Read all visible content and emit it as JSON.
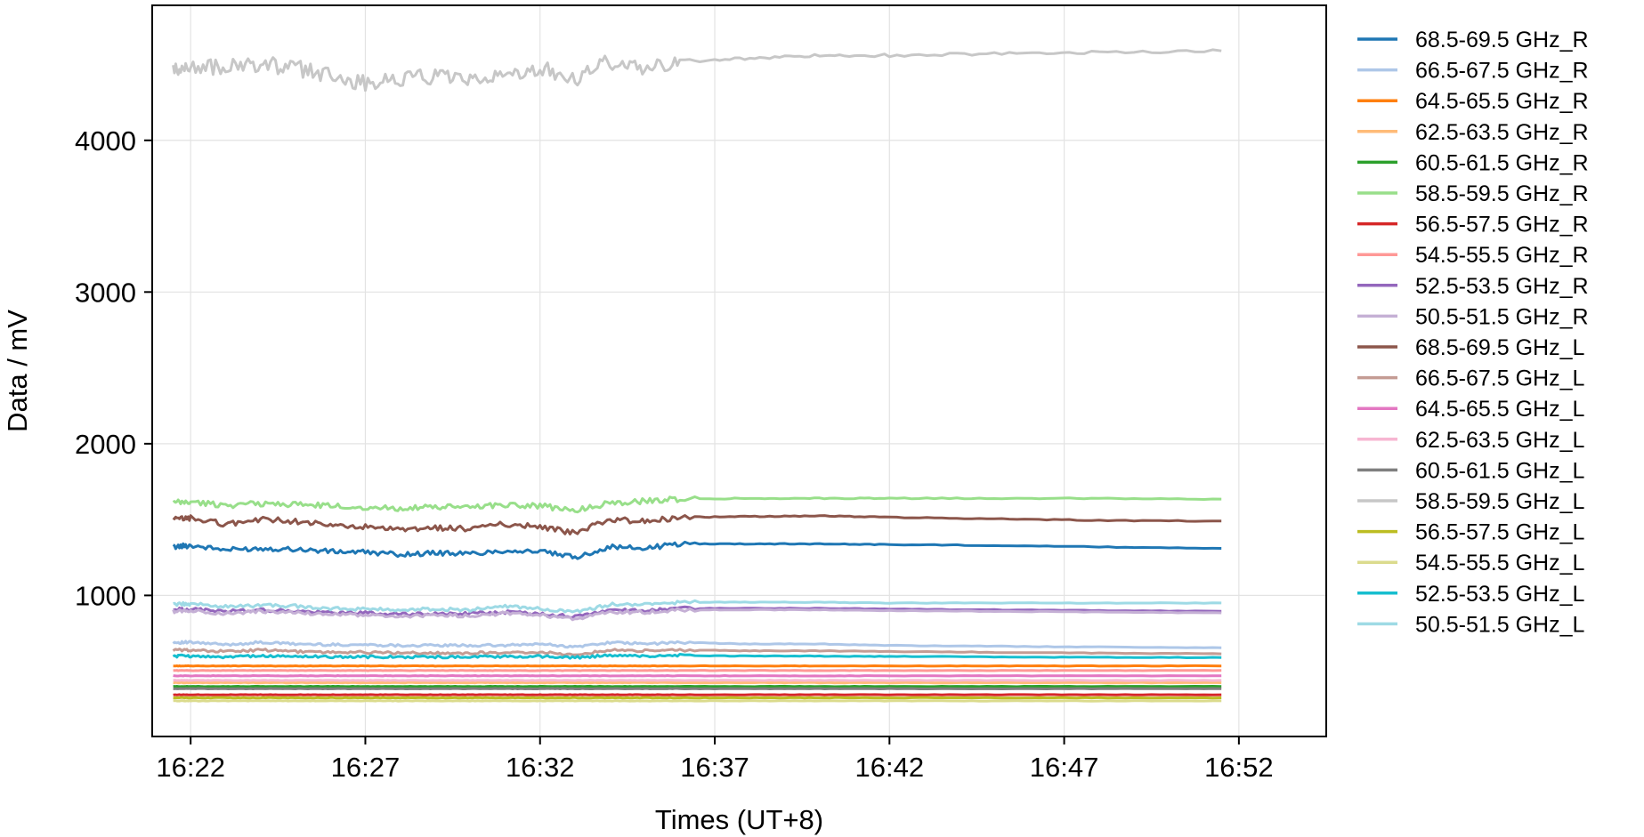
{
  "chart_data": {
    "type": "line",
    "title": "",
    "xlabel": "Times (UT+8)",
    "ylabel": "Data / mV",
    "grid": true,
    "legend_position": "right-outside",
    "x_range_minutes": [
      -1.1,
      32.5
    ],
    "x_ticks": [
      {
        "label": "16:22",
        "value": 0
      },
      {
        "label": "16:27",
        "value": 5
      },
      {
        "label": "16:32",
        "value": 10
      },
      {
        "label": "16:37",
        "value": 15
      },
      {
        "label": "16:42",
        "value": 20
      },
      {
        "label": "16:47",
        "value": 25
      },
      {
        "label": "16:52",
        "value": 30
      }
    ],
    "ylim": [
      70,
      4890
    ],
    "y_ticks": [
      1000,
      2000,
      3000,
      4000
    ],
    "x_times": [
      "16:21.5",
      "16:22",
      "16:23",
      "16:24",
      "16:25",
      "16:26",
      "16:27",
      "16:28",
      "16:29",
      "16:30",
      "16:31",
      "16:32",
      "16:33",
      "16:34",
      "16:35",
      "16:36",
      "16:38",
      "16:40",
      "16:42",
      "16:45",
      "16:48",
      "16:51.5"
    ],
    "x": [
      -0.5,
      0,
      1,
      2,
      3,
      4,
      5,
      6,
      7,
      8,
      9,
      10,
      11,
      12,
      13,
      14,
      16,
      18,
      20,
      23,
      26,
      29.5
    ],
    "series": [
      {
        "name": "68.5-69.5 GHz_R",
        "color": "#1f77b4",
        "values": [
          1320,
          1330,
          1300,
          1310,
          1305,
          1290,
          1285,
          1270,
          1280,
          1275,
          1295,
          1290,
          1250,
          1320,
          1310,
          1340,
          1340,
          1340,
          1335,
          1330,
          1320,
          1310
        ]
      },
      {
        "name": "66.5-67.5 GHz_R",
        "color": "#aec7e8",
        "values": [
          690,
          690,
          675,
          690,
          680,
          675,
          675,
          670,
          670,
          670,
          670,
          680,
          660,
          690,
          680,
          690,
          680,
          680,
          670,
          665,
          660,
          655
        ]
      },
      {
        "name": "64.5-65.5 GHz_R",
        "color": "#ff7f0e",
        "values": [
          535,
          535,
          535,
          535,
          535,
          535,
          535,
          535,
          535,
          535,
          535,
          535,
          535,
          535,
          535,
          535,
          535,
          535,
          535,
          535,
          535,
          535
        ]
      },
      {
        "name": "62.5-63.5 GHz_R",
        "color": "#ffbb78",
        "values": [
          425,
          425,
          425,
          425,
          425,
          425,
          425,
          425,
          425,
          425,
          425,
          425,
          425,
          425,
          425,
          425,
          425,
          425,
          425,
          425,
          425,
          425
        ]
      },
      {
        "name": "60.5-61.5 GHz_R",
        "color": "#2ca02c",
        "values": [
          400,
          400,
          400,
          400,
          400,
          400,
          400,
          400,
          400,
          400,
          400,
          400,
          400,
          400,
          400,
          400,
          400,
          400,
          400,
          400,
          400,
          400
        ]
      },
      {
        "name": "58.5-59.5 GHz_R",
        "color": "#98df8a",
        "values": [
          1610,
          1615,
          1595,
          1605,
          1600,
          1590,
          1580,
          1575,
          1580,
          1585,
          1600,
          1590,
          1560,
          1610,
          1620,
          1635,
          1640,
          1640,
          1640,
          1640,
          1640,
          1635
        ]
      },
      {
        "name": "56.5-57.5 GHz_R",
        "color": "#d62728",
        "values": [
          345,
          345,
          345,
          345,
          345,
          345,
          345,
          345,
          345,
          345,
          345,
          345,
          345,
          345,
          345,
          345,
          345,
          345,
          345,
          345,
          345,
          345
        ]
      },
      {
        "name": "54.5-55.5 GHz_R",
        "color": "#ff9896",
        "values": [
          505,
          505,
          505,
          505,
          505,
          505,
          505,
          505,
          505,
          505,
          505,
          505,
          505,
          505,
          505,
          505,
          505,
          505,
          505,
          505,
          505,
          505
        ]
      },
      {
        "name": "52.5-53.5 GHz_R",
        "color": "#9467bd",
        "values": [
          905,
          910,
          895,
          905,
          895,
          885,
          885,
          875,
          880,
          880,
          890,
          880,
          860,
          905,
          900,
          915,
          915,
          915,
          910,
          905,
          900,
          895
        ]
      },
      {
        "name": "50.5-51.5 GHz_R",
        "color": "#c5b0d5",
        "values": [
          895,
          900,
          880,
          895,
          885,
          875,
          870,
          860,
          870,
          865,
          880,
          870,
          845,
          890,
          890,
          905,
          905,
          905,
          900,
          895,
          890,
          885
        ]
      },
      {
        "name": "68.5-69.5 GHz_L",
        "color": "#8c564b",
        "values": [
          1500,
          1510,
          1470,
          1500,
          1490,
          1460,
          1450,
          1430,
          1445,
          1440,
          1470,
          1455,
          1410,
          1500,
          1490,
          1515,
          1520,
          1525,
          1515,
          1505,
          1495,
          1490
        ]
      },
      {
        "name": "66.5-67.5 GHz_L",
        "color": "#c49c94",
        "values": [
          640,
          640,
          630,
          640,
          630,
          625,
          625,
          620,
          620,
          620,
          625,
          625,
          610,
          640,
          635,
          640,
          635,
          635,
          630,
          625,
          620,
          615
        ]
      },
      {
        "name": "64.5-65.5 GHz_L",
        "color": "#e377c2",
        "values": [
          470,
          470,
          470,
          470,
          470,
          470,
          470,
          470,
          470,
          470,
          470,
          470,
          470,
          470,
          470,
          470,
          470,
          470,
          470,
          470,
          470,
          470
        ]
      },
      {
        "name": "62.5-63.5 GHz_L",
        "color": "#f7b6d2",
        "values": [
          440,
          440,
          440,
          440,
          440,
          440,
          440,
          440,
          440,
          440,
          440,
          440,
          440,
          440,
          440,
          440,
          440,
          440,
          440,
          440,
          440,
          440
        ]
      },
      {
        "name": "60.5-61.5 GHz_L",
        "color": "#7f7f7f",
        "values": [
          385,
          385,
          385,
          385,
          385,
          385,
          385,
          385,
          385,
          385,
          385,
          385,
          385,
          385,
          385,
          385,
          385,
          385,
          385,
          385,
          385,
          385
        ]
      },
      {
        "name": "58.5-59.5 GHz_L",
        "color": "#c7c7c7",
        "values": [
          4450,
          4490,
          4480,
          4500,
          4480,
          4420,
          4380,
          4410,
          4420,
          4380,
          4440,
          4480,
          4400,
          4520,
          4480,
          4520,
          4540,
          4560,
          4560,
          4570,
          4580,
          4590
        ]
      },
      {
        "name": "56.5-57.5 GHz_L",
        "color": "#bcbd22",
        "values": [
          325,
          325,
          325,
          325,
          325,
          325,
          325,
          325,
          325,
          325,
          325,
          325,
          325,
          325,
          325,
          325,
          325,
          325,
          325,
          325,
          325,
          325
        ]
      },
      {
        "name": "54.5-55.5 GHz_L",
        "color": "#dbdb8d",
        "values": [
          305,
          305,
          305,
          305,
          305,
          305,
          305,
          305,
          305,
          305,
          305,
          305,
          305,
          305,
          305,
          305,
          305,
          305,
          305,
          305,
          305,
          305
        ]
      },
      {
        "name": "52.5-53.5 GHz_L",
        "color": "#17becf",
        "values": [
          600,
          600,
          595,
          600,
          598,
          595,
          595,
          595,
          595,
          595,
          598,
          598,
          590,
          605,
          600,
          605,
          600,
          600,
          598,
          595,
          592,
          590
        ]
      },
      {
        "name": "50.5-51.5 GHz_L",
        "color": "#9edae5",
        "values": [
          940,
          945,
          925,
          935,
          930,
          915,
          910,
          905,
          910,
          905,
          925,
          915,
          890,
          940,
          940,
          955,
          955,
          955,
          950,
          950,
          950,
          950
        ]
      }
    ]
  }
}
